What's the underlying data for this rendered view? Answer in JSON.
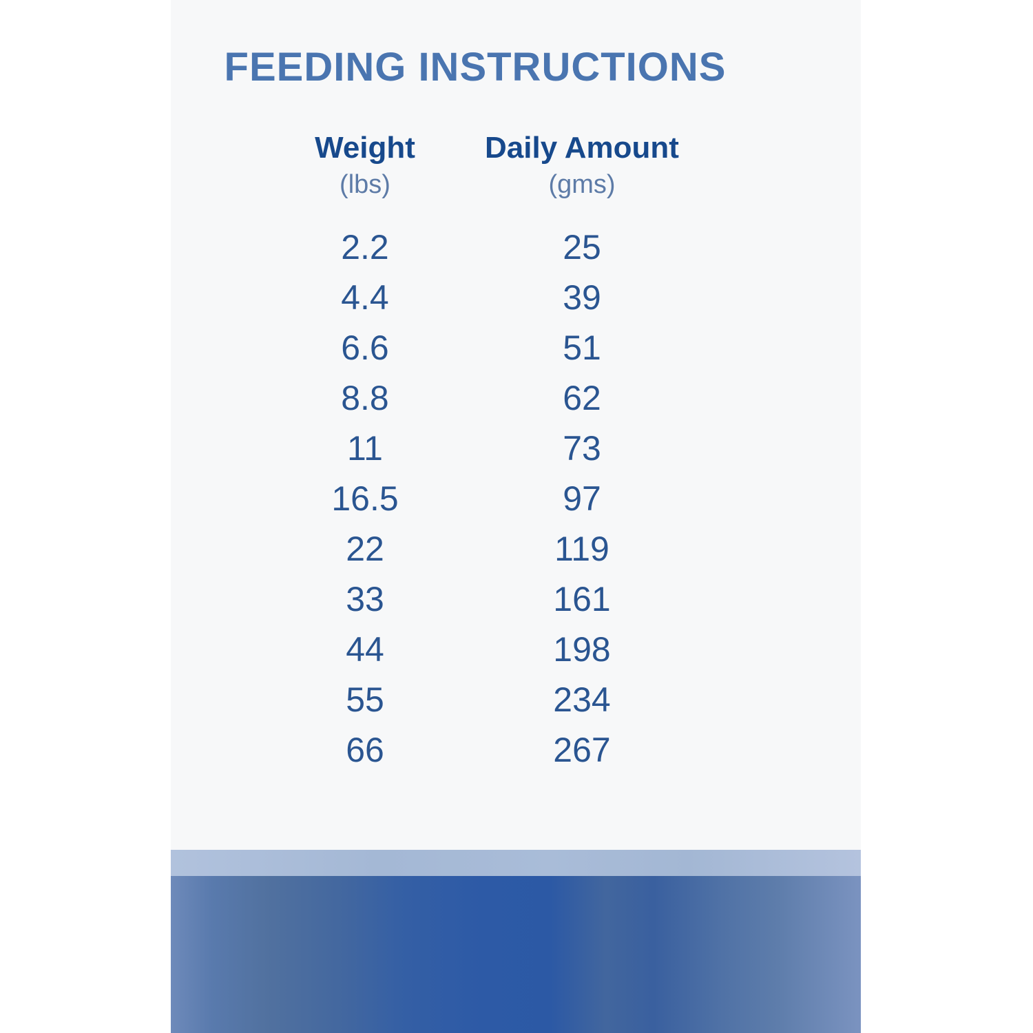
{
  "title": "FEEDING INSTRUCTIONS",
  "table": {
    "columns": [
      {
        "label": "Weight",
        "unit": "(lbs)"
      },
      {
        "label": "Daily Amount",
        "unit": "(gms)"
      }
    ],
    "rows": [
      {
        "weight": "2.2",
        "amount": "25"
      },
      {
        "weight": "4.4",
        "amount": "39"
      },
      {
        "weight": "6.6",
        "amount": "51"
      },
      {
        "weight": "8.8",
        "amount": "62"
      },
      {
        "weight": "11",
        "amount": "73"
      },
      {
        "weight": "16.5",
        "amount": "97"
      },
      {
        "weight": "22",
        "amount": "119"
      },
      {
        "weight": "33",
        "amount": "161"
      },
      {
        "weight": "44",
        "amount": "198"
      },
      {
        "weight": "55",
        "amount": "234"
      },
      {
        "weight": "66",
        "amount": "267"
      }
    ]
  },
  "colors": {
    "page_background": "#ffffff",
    "card_background": "#f7f8f9",
    "title": "#4a75b0",
    "header": "#17498c",
    "unit": "#5d7ba7",
    "value": "#2a5591",
    "band_light": "#a9bcd8",
    "band_dark_start": "#6e8aba",
    "band_dark_mid": "#2d5aa6",
    "band_dark_end": "#7b93c0"
  }
}
